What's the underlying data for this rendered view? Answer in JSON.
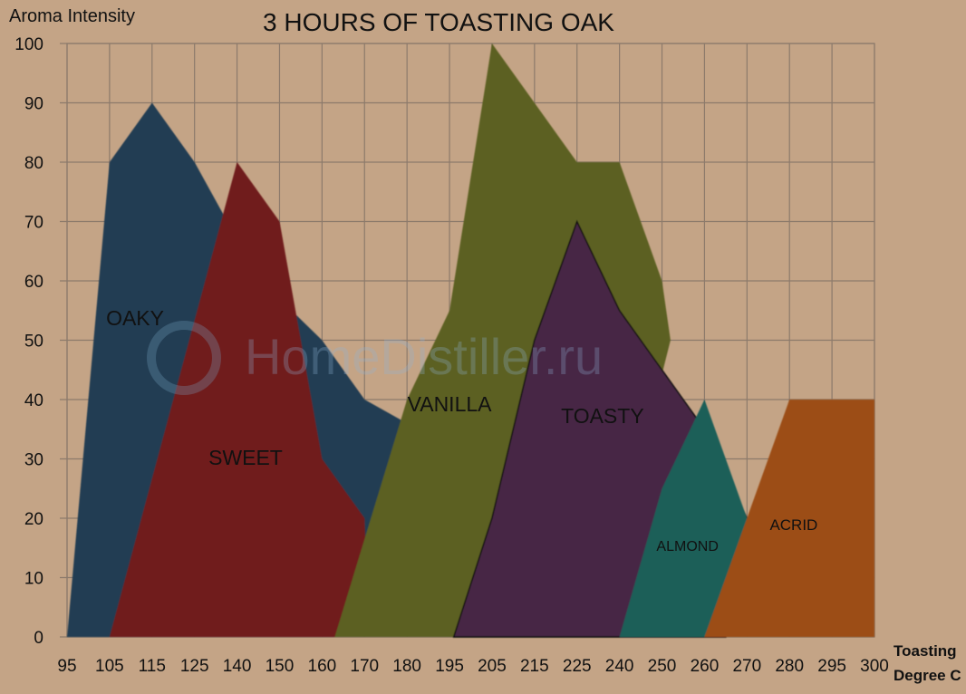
{
  "chart_data": {
    "type": "area",
    "title": "3 HOURS OF TOASTING OAK",
    "ylabel": "Aroma Intensity",
    "xlabel_line1": "Toasting",
    "xlabel_line2": "Degree C",
    "categories": [
      "95",
      "105",
      "115",
      "125",
      "140",
      "150",
      "160",
      "170",
      "180",
      "195",
      "205",
      "215",
      "225",
      "240",
      "250",
      "260",
      "270",
      "280",
      "295",
      "300"
    ],
    "yticks": [
      "0",
      "10",
      "20",
      "30",
      "40",
      "50",
      "60",
      "70",
      "80",
      "90",
      "100"
    ],
    "ylim": [
      0,
      100
    ],
    "grid": true,
    "watermark": "HomeDistiller.ru",
    "series": [
      {
        "name": "OAKY",
        "color": "#213d52",
        "points": [
          [
            0,
            0
          ],
          [
            1,
            80
          ],
          [
            2,
            90
          ],
          [
            3,
            80
          ],
          [
            4,
            67
          ],
          [
            5,
            57
          ],
          [
            6,
            50
          ],
          [
            7,
            40
          ],
          [
            8,
            36
          ],
          [
            7,
            10
          ],
          [
            6,
            0
          ]
        ]
      },
      {
        "name": "SWEET",
        "color": "#6f1b1b",
        "points": [
          [
            1,
            0
          ],
          [
            4,
            80
          ],
          [
            5,
            70
          ],
          [
            6,
            30
          ],
          [
            7,
            20
          ],
          [
            7.1,
            0
          ]
        ]
      },
      {
        "name": "VANILLA",
        "color": "#5c6022",
        "points": [
          [
            6.3,
            0
          ],
          [
            8,
            40
          ],
          [
            9,
            55
          ],
          [
            10,
            100
          ],
          [
            11,
            90
          ],
          [
            12,
            80
          ],
          [
            13,
            80
          ],
          [
            14,
            60
          ],
          [
            14.2,
            50
          ],
          [
            13.5,
            30
          ],
          [
            13,
            0
          ]
        ]
      },
      {
        "name": "TOASTY",
        "color": "#472844",
        "points": [
          [
            9.1,
            0
          ],
          [
            10,
            20
          ],
          [
            11,
            50
          ],
          [
            12,
            70
          ],
          [
            13,
            55
          ],
          [
            14,
            45
          ],
          [
            15,
            35
          ],
          [
            16,
            20
          ],
          [
            15.5,
            0
          ]
        ]
      },
      {
        "name": "ALMOND",
        "color": "#1c5e59",
        "points": [
          [
            13,
            0
          ],
          [
            14,
            25
          ],
          [
            15,
            40
          ],
          [
            16,
            20
          ],
          [
            15.3,
            0
          ]
        ]
      },
      {
        "name": "ACRID",
        "color": "#9c4e15",
        "points": [
          [
            15,
            0
          ],
          [
            16,
            20
          ],
          [
            17,
            40
          ],
          [
            19,
            40
          ],
          [
            19,
            0
          ]
        ]
      }
    ]
  }
}
